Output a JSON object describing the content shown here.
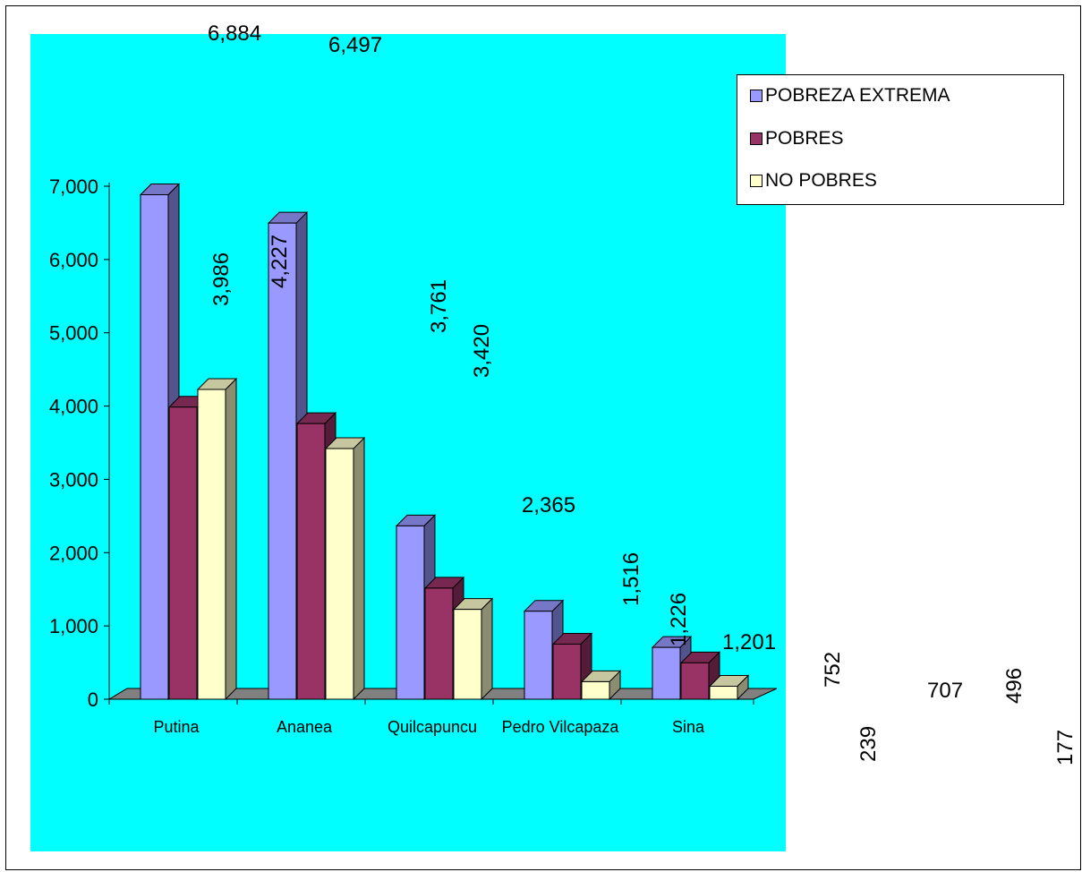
{
  "chart_data": {
    "type": "bar",
    "title": "",
    "xlabel": "",
    "ylabel": "",
    "ylim": [
      0,
      7000
    ],
    "yticks": [
      "0",
      "1,000",
      "2,000",
      "3,000",
      "4,000",
      "5,000",
      "6,000",
      "7,000"
    ],
    "categories": [
      "Putina",
      "Ananea",
      "Quilcapuncu",
      "Pedro Vilcapaza",
      "Sina"
    ],
    "series": [
      {
        "name": "POBREZA EXTREMA",
        "color": "#9999ff",
        "values": [
          6884,
          6497,
          2365,
          1201,
          707
        ]
      },
      {
        "name": "POBRES",
        "color": "#993366",
        "values": [
          3986,
          3761,
          1516,
          752,
          496
        ]
      },
      {
        "name": "NO POBRES",
        "color": "#ffffcc",
        "values": [
          4227,
          3420,
          1226,
          239,
          177
        ]
      }
    ],
    "data_labels": [
      "6,884",
      "6,497",
      "3,986",
      "4,227",
      "3,761",
      "3,420",
      "2,365",
      "1,516",
      "1,226",
      "1,201",
      "752",
      "707",
      "496",
      "239",
      "177"
    ],
    "plot_background": "#00ffff",
    "floor_color": "#808080",
    "legend_position": "top-right",
    "grid": false
  }
}
